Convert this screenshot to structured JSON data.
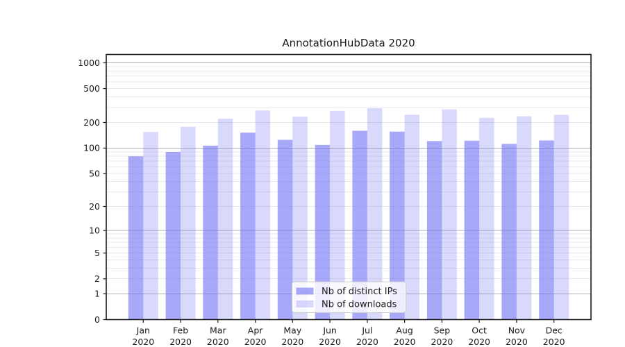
{
  "chart_data": {
    "type": "bar",
    "title": "AnnotationHubData 2020",
    "categories": [
      "Jan 2020",
      "Feb 2020",
      "Mar 2020",
      "Apr 2020",
      "May 2020",
      "Jun 2020",
      "Jul 2020",
      "Aug 2020",
      "Sep 2020",
      "Oct 2020",
      "Nov 2020",
      "Dec 2020"
    ],
    "series": [
      {
        "name": "Nb of distinct IPs",
        "color": "rgba(110,110,245,0.60)",
        "values": [
          80,
          90,
          107,
          152,
          125,
          109,
          160,
          156,
          121,
          122,
          112,
          123
        ]
      },
      {
        "name": "Nb of downloads",
        "color": "rgba(110,110,245,0.26)",
        "values": [
          155,
          178,
          222,
          277,
          235,
          273,
          294,
          247,
          285,
          227,
          237,
          246
        ]
      }
    ],
    "xlabel": "",
    "ylabel": "",
    "yscale": "log1p",
    "ylim": [
      0,
      1240
    ],
    "yticks": [
      1000,
      500,
      200,
      100,
      50,
      20,
      10,
      5,
      2,
      1,
      0
    ],
    "ytick_major_gridlines": [
      1,
      10,
      100,
      1000
    ],
    "ytick_minor_gridlines": [
      2,
      3,
      4,
      5,
      6,
      7,
      8,
      9,
      20,
      30,
      40,
      50,
      60,
      70,
      80,
      90,
      200,
      300,
      400,
      500,
      600,
      700,
      800,
      900
    ],
    "grid": "on",
    "legend_position": "lower-center",
    "colors": {
      "bar_base": "#6e6ef5",
      "major_grid": "#b0b0b0",
      "minor_grid": "#e9e9e9",
      "spine": "#1a1a1a",
      "legend_border": "#cccccc",
      "legend_bg": "rgba(255,255,255,0.8)"
    }
  }
}
